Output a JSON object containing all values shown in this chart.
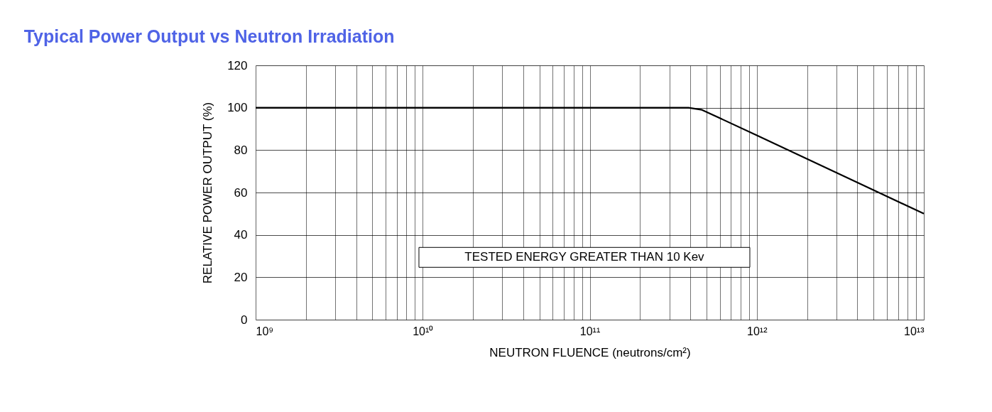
{
  "chart_data": {
    "type": "line",
    "title": "Typical Power Output vs Neutron Irradiation",
    "xlabel": "NEUTRON FLUENCE (neutrons/cm²)",
    "ylabel": "RELATIVE POWER OUTPUT (%)",
    "x": [
      1000000000.0,
      390000000000.0,
      470000000000.0,
      1000000000000.0,
      10000000000000.0
    ],
    "series": [
      {
        "color": "#000000",
        "values": [
          100,
          100,
          99,
          87,
          50
        ]
      }
    ],
    "log": "x",
    "xlim": [
      1000000000.0,
      10000000000000.0
    ],
    "xticks": [
      {
        "value": 1000000000.0,
        "label": "10⁹"
      },
      {
        "value": 2000000000.0,
        "label": null
      },
      {
        "value": 3000000000.0,
        "label": null
      },
      {
        "value": 4000000000.0,
        "label": null
      },
      {
        "value": 5000000000.0,
        "label": null
      },
      {
        "value": 6000000000.0,
        "label": null
      },
      {
        "value": 7000000000.0,
        "label": null
      },
      {
        "value": 8000000000.0,
        "label": null
      },
      {
        "value": 9000000000.0,
        "label": null
      },
      {
        "value": 10000000000.0,
        "label": "10¹⁰"
      },
      {
        "value": 20000000000.0,
        "label": null
      },
      {
        "value": 30000000000.0,
        "label": null
      },
      {
        "value": 40000000000.0,
        "label": null
      },
      {
        "value": 50000000000.0,
        "label": null
      },
      {
        "value": 60000000000.0,
        "label": null
      },
      {
        "value": 70000000000.0,
        "label": null
      },
      {
        "value": 80000000000.0,
        "label": null
      },
      {
        "value": 90000000000.0,
        "label": null
      },
      {
        "value": 100000000000.0,
        "label": "10¹¹"
      },
      {
        "value": 200000000000.0,
        "label": null
      },
      {
        "value": 300000000000.0,
        "label": null
      },
      {
        "value": 400000000000.0,
        "label": null
      },
      {
        "value": 500000000000.0,
        "label": null
      },
      {
        "value": 600000000000.0,
        "label": null
      },
      {
        "value": 700000000000.0,
        "label": null
      },
      {
        "value": 800000000000.0,
        "label": null
      },
      {
        "value": 900000000000.0,
        "label": null
      },
      {
        "value": 1000000000000.0,
        "label": "10¹²"
      },
      {
        "value": 2000000000000.0,
        "label": null
      },
      {
        "value": 3000000000000.0,
        "label": null
      },
      {
        "value": 4000000000000.0,
        "label": null
      },
      {
        "value": 5000000000000.0,
        "label": null
      },
      {
        "value": 6000000000000.0,
        "label": null
      },
      {
        "value": 7000000000000.0,
        "label": null
      },
      {
        "value": 8000000000000.0,
        "label": null
      },
      {
        "value": 9000000000000.0,
        "label": null
      },
      {
        "value": 10000000000000.0,
        "label": "10¹³"
      }
    ],
    "ylim": [
      0,
      120
    ],
    "yticks": [
      0,
      20,
      40,
      60,
      80,
      100,
      120
    ],
    "grid": true,
    "line_style": "solid",
    "annotations": [
      "TESTED ENERGY GREATER THAN 10 Kev"
    ]
  }
}
